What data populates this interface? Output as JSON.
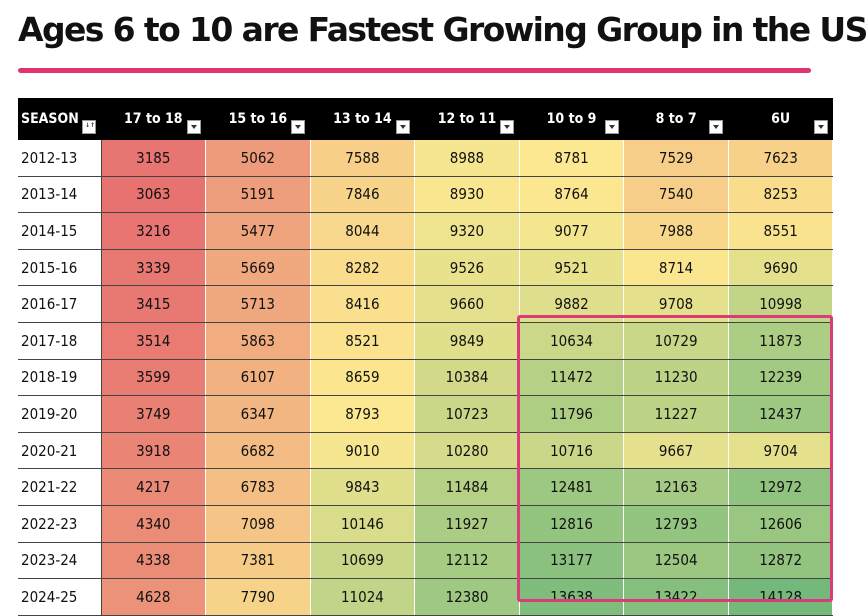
{
  "chart_data": {
    "type": "table",
    "title": "Ages 6 to 10 are Fastest Growing Group in the US",
    "columns": [
      "SEASON",
      "17 to 18",
      "15 to 16",
      "13 to 14",
      "12 to 11",
      "10 to 9",
      "8 to 7",
      "6U"
    ],
    "rows": [
      {
        "season": "2012-13",
        "values": [
          3185,
          5062,
          7588,
          8988,
          8781,
          7529,
          7623
        ]
      },
      {
        "season": "2013-14",
        "values": [
          3063,
          5191,
          7846,
          8930,
          8764,
          7540,
          8253
        ]
      },
      {
        "season": "2014-15",
        "values": [
          3216,
          5477,
          8044,
          9320,
          9077,
          7988,
          8551
        ]
      },
      {
        "season": "2015-16",
        "values": [
          3339,
          5669,
          8282,
          9526,
          9521,
          8714,
          9690
        ]
      },
      {
        "season": "2016-17",
        "values": [
          3415,
          5713,
          8416,
          9660,
          9882,
          9708,
          10998
        ]
      },
      {
        "season": "2017-18",
        "values": [
          3514,
          5863,
          8521,
          9849,
          10634,
          10729,
          11873
        ]
      },
      {
        "season": "2018-19",
        "values": [
          3599,
          6107,
          8659,
          10384,
          11472,
          11230,
          12239
        ]
      },
      {
        "season": "2019-20",
        "values": [
          3749,
          6347,
          8793,
          10723,
          11796,
          11227,
          12437
        ]
      },
      {
        "season": "2020-21",
        "values": [
          3918,
          6682,
          9010,
          10280,
          10716,
          9667,
          9704
        ]
      },
      {
        "season": "2021-22",
        "values": [
          4217,
          6783,
          9843,
          11484,
          12481,
          12163,
          12972
        ]
      },
      {
        "season": "2022-23",
        "values": [
          4340,
          7098,
          10146,
          11927,
          12816,
          12793,
          12606
        ]
      },
      {
        "season": "2023-24",
        "values": [
          4338,
          7381,
          10699,
          12112,
          13177,
          12504,
          12872
        ]
      },
      {
        "season": "2024-25",
        "values": [
          4628,
          7790,
          11024,
          12380,
          13638,
          13422,
          14128
        ]
      }
    ],
    "highlight": {
      "from_season": "2017-18",
      "to_season": "2024-25",
      "columns": [
        "10 to 9",
        "8 to 7",
        "6U"
      ]
    },
    "color_scale": {
      "low": "#e77270",
      "mid": "#fbe890",
      "high": "#72b97b",
      "min": 3063,
      "mid_value": 8800,
      "max": 14128
    },
    "accent_color": "#e0336f"
  }
}
